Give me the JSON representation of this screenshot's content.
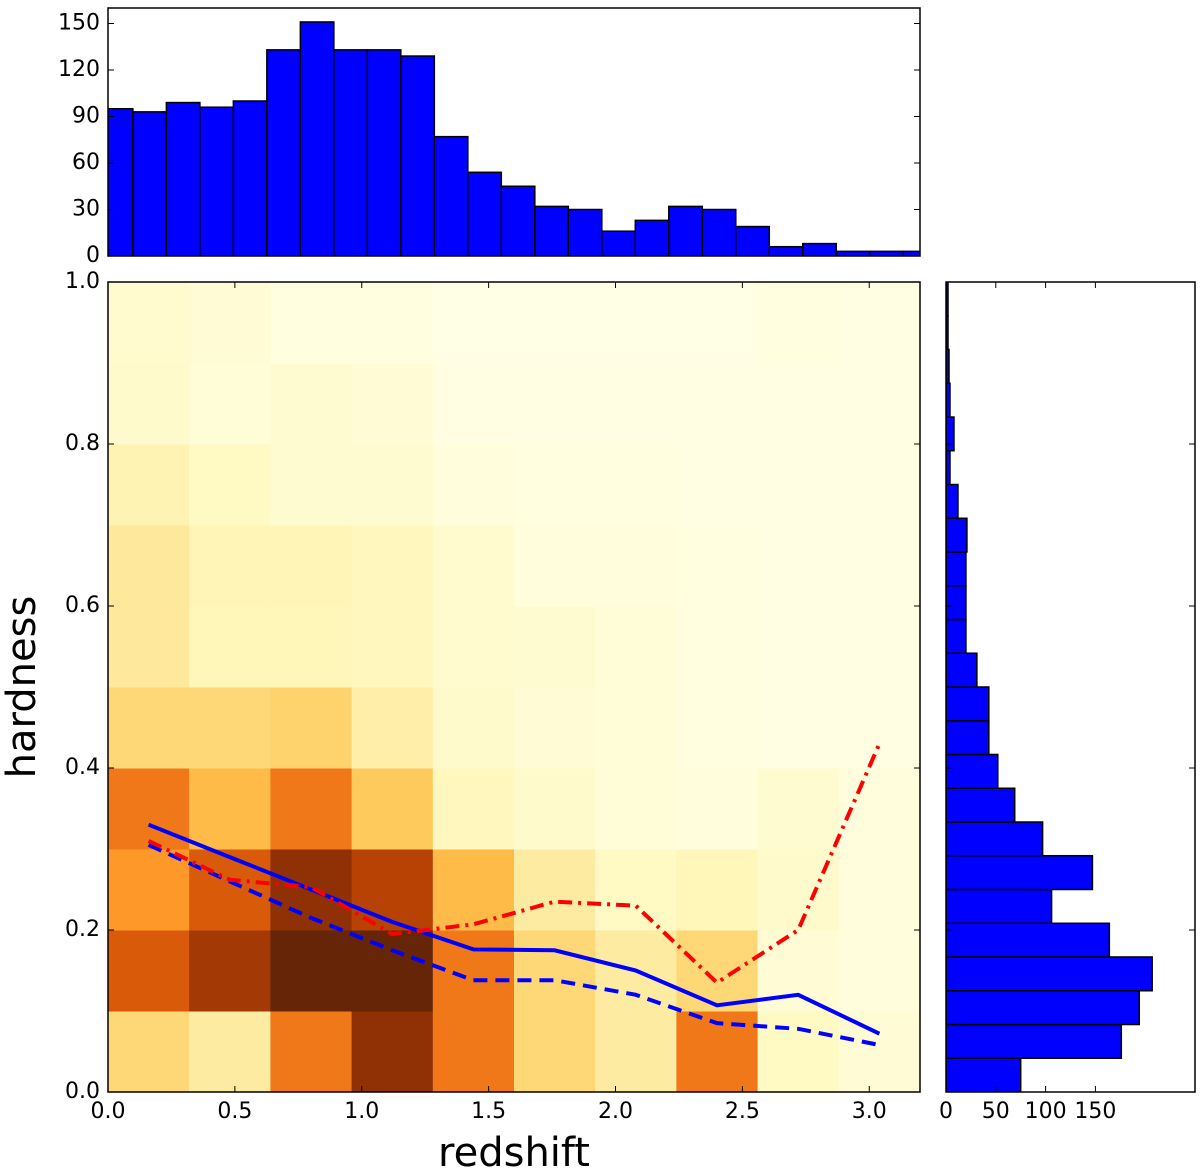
{
  "chart_data": [
    {
      "type": "heatmap",
      "xlabel": "redshift",
      "ylabel": "hardness",
      "xlim": [
        0,
        3.2
      ],
      "ylim": [
        0,
        1
      ],
      "xticks": [
        {
          "value": 0,
          "label": "0.0"
        },
        0.5,
        {
          "value": 1,
          "label": "1.0"
        },
        1.5,
        {
          "value": 2,
          "label": "2.0"
        },
        2.5,
        {
          "value": 3,
          "label": "3.0"
        }
      ],
      "yticks": [
        {
          "value": 0,
          "label": "0.0"
        },
        0.2,
        0.4,
        0.6,
        0.8,
        {
          "value": 1,
          "label": "1.0"
        }
      ],
      "x_bins": [
        0,
        0.32,
        0.64,
        0.96,
        1.28,
        1.6,
        1.92,
        2.24,
        2.56,
        2.88,
        3.2
      ],
      "y_bins": [
        0,
        0.1,
        0.2,
        0.3,
        0.4,
        0.5,
        0.6,
        0.7,
        0.8,
        0.9,
        1.0
      ],
      "zlim": [
        0,
        10
      ],
      "colormap": [
        "#ffffe5",
        "#fff7bc",
        "#fee391",
        "#fec44f",
        "#fe9929",
        "#ec7014",
        "#cc4c02",
        "#993404",
        "#662506"
      ],
      "z": [
        [
          3,
          2,
          6,
          9,
          6,
          3,
          2,
          6,
          1,
          0.5
        ],
        [
          7,
          8.5,
          10,
          10,
          6,
          3,
          2,
          3,
          0.5,
          0.3
        ],
        [
          5,
          7,
          9,
          8,
          4,
          2,
          1,
          1.3,
          0.8,
          0.3
        ],
        [
          6,
          4,
          6,
          3.5,
          1.2,
          0.8,
          0.4,
          0.3,
          0.6,
          0.3
        ],
        [
          3,
          3,
          3.2,
          1.8,
          0.8,
          0.5,
          0.4,
          0.2,
          0.1,
          0.1
        ],
        [
          2.2,
          1.3,
          1.3,
          1.2,
          0.7,
          0.6,
          0.4,
          0.2,
          0.1,
          0.1
        ],
        [
          2.2,
          1.4,
          1.4,
          1.2,
          0.7,
          0.3,
          0.3,
          0.2,
          0.1,
          0.1
        ],
        [
          1.5,
          1,
          0.6,
          0.6,
          0.3,
          0.2,
          0.2,
          0.1,
          0.1,
          0.1
        ],
        [
          0.8,
          0.4,
          0.6,
          0.5,
          0.1,
          0.1,
          0.1,
          0.1,
          0.1,
          0.1
        ],
        [
          0.7,
          0.5,
          0.2,
          0.2,
          0,
          0,
          0,
          0,
          0.2,
          0.1
        ]
      ],
      "x": [
        0.16,
        0.48,
        0.8,
        1.12,
        1.44,
        1.76,
        2.08,
        2.4,
        2.72,
        3.04
      ],
      "series": [
        {
          "color": "#0000ff",
          "style": "solid",
          "values": [
            0.33,
            0.29,
            0.25,
            0.21,
            0.176,
            0.175,
            0.15,
            0.107,
            0.12,
            0.072
          ]
        },
        {
          "color": "#0000ff",
          "style": "dashed",
          "values": [
            0.305,
            0.26,
            0.215,
            0.175,
            0.138,
            0.138,
            0.12,
            0.085,
            0.078,
            0.058
          ]
        },
        {
          "color": "#ff0000",
          "style": "dashdot",
          "values": [
            0.31,
            0.262,
            0.253,
            0.195,
            0.207,
            0.235,
            0.23,
            0.135,
            0.2,
            0.43
          ]
        }
      ]
    },
    {
      "type": "histogram",
      "orientation": "vertical",
      "color": "#0000ff",
      "xlim": [
        0,
        3.2
      ],
      "ylim": [
        0,
        160
      ],
      "yticks": [
        0,
        30,
        60,
        90,
        120,
        150
      ],
      "bins": [
        -0.034,
        0.098,
        0.23,
        0.362,
        0.494,
        0.626,
        0.758,
        0.89,
        1.022,
        1.154,
        1.286,
        1.418,
        1.55,
        1.682,
        1.814,
        1.946,
        2.078,
        2.21,
        2.342,
        2.474,
        2.606,
        2.738,
        2.87,
        3.002,
        3.134,
        3.266
      ],
      "values": [
        95,
        93,
        99,
        96,
        100,
        133,
        151,
        133,
        133,
        129,
        77,
        54,
        45,
        32,
        30,
        16,
        23,
        32,
        30,
        19,
        6,
        8,
        3,
        3,
        3
      ]
    },
    {
      "type": "histogram",
      "orientation": "horizontal",
      "color": "#0000ff",
      "xlim": [
        0,
        250
      ],
      "ylim": [
        0,
        1
      ],
      "xticks": [
        0,
        50,
        100,
        150
      ],
      "yticks": [
        0,
        0.2,
        0.4,
        0.6,
        0.8,
        1
      ],
      "show_ytick_labels": false,
      "bins": [
        0,
        0.0417,
        0.0833,
        0.125,
        0.1667,
        0.2083,
        0.25,
        0.2917,
        0.3333,
        0.375,
        0.4167,
        0.4583,
        0.5,
        0.5417,
        0.5833,
        0.625,
        0.6667,
        0.7083,
        0.75,
        0.7917,
        0.8333,
        0.875,
        0.9167,
        0.9583,
        1.0
      ],
      "values": [
        75,
        176,
        194,
        207,
        164,
        106,
        147,
        97,
        69,
        52,
        43,
        43,
        31,
        20,
        20,
        20,
        21,
        12,
        4,
        8,
        4,
        3,
        2,
        2
      ]
    }
  ]
}
